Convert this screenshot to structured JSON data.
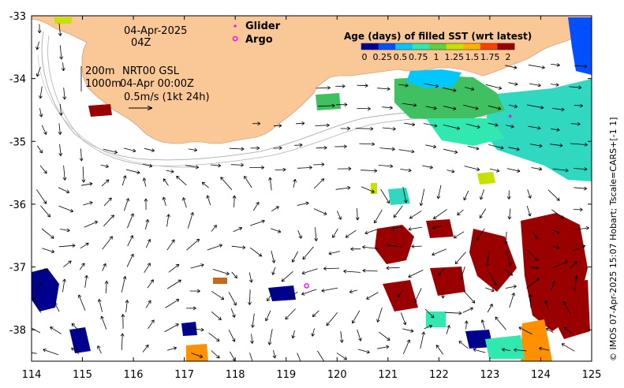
{
  "map": {
    "date_label": "04-Apr-2025",
    "hour_label": "04Z",
    "contour_200": "200m",
    "contour_1000": "1000m",
    "product_label": "NRT00 GSL",
    "time_label": "04-Apr 00:00Z",
    "scale_label": "0.5m/s (1kt 24h)",
    "credit": "© IMOS 07-Apr-2025 15:07 Hobart; Tscale=CARS+[-1 1]",
    "colors": {
      "land": "#fac896",
      "ocean": "#ffffff",
      "glider": "#ff00ff",
      "argo": "#ff00ff"
    }
  },
  "key": {
    "glider_label": "Glider",
    "argo_label": "Argo"
  },
  "age_legend": {
    "title": "Age (days) of filled SST (wrt latest)",
    "ticks": [
      "0",
      "0.25",
      "0.5",
      "0.75",
      "1",
      "1.25",
      "1.5",
      "1.75",
      "2"
    ],
    "colors": [
      "#00008f",
      "#0050ff",
      "#00c8ff",
      "#30e8b0",
      "#60d040",
      "#c8e000",
      "#ffb000",
      "#ff4000",
      "#9a0000"
    ]
  },
  "axes": {
    "x_ticks": [
      "114",
      "115",
      "116",
      "117",
      "118",
      "119",
      "120",
      "121",
      "122",
      "123",
      "124",
      "125"
    ],
    "y_ticks": [
      "-33",
      "-34",
      "-35",
      "-36",
      "-37",
      "-38"
    ],
    "x_range": [
      114,
      125
    ],
    "y_range": [
      -38.5,
      -33
    ]
  },
  "markers": {
    "argo_position": {
      "lon": 119.4,
      "lat": -37.3
    },
    "glider_position": {
      "lon": 123.4,
      "lat": -34.6
    }
  }
}
